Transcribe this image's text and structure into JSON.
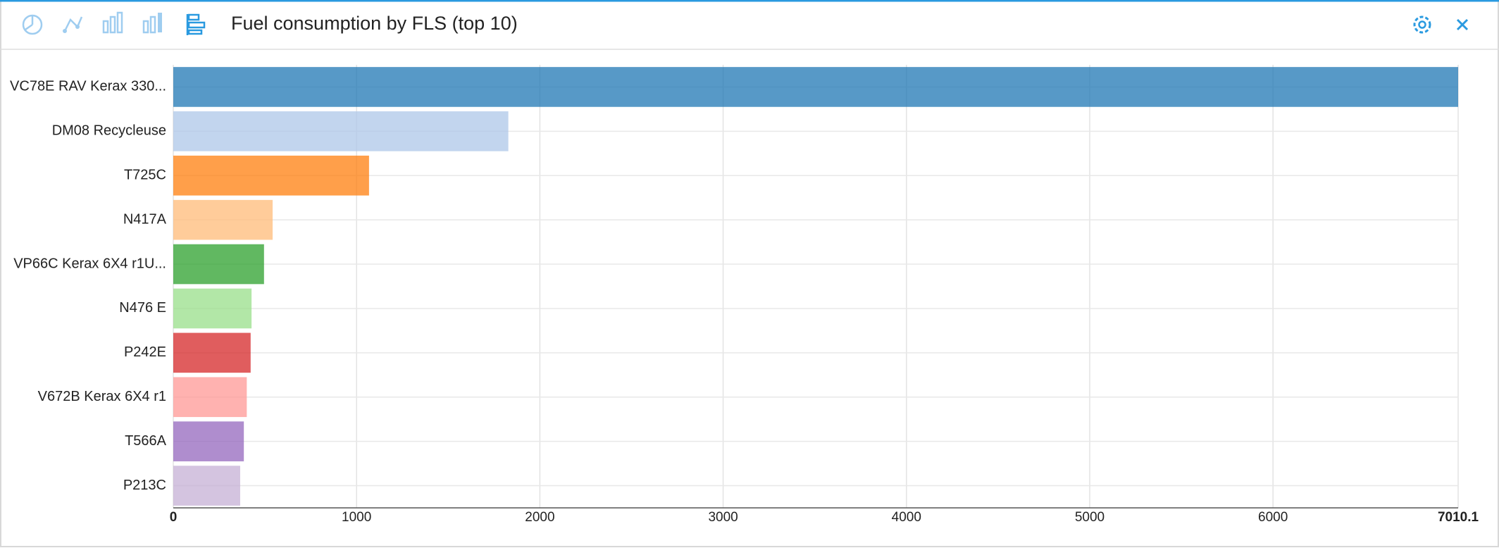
{
  "chart_data": {
    "type": "bar",
    "orientation": "horizontal",
    "title": "Fuel consumption by FLS (top 10)",
    "categories": [
      "VC78E RAV Kerax 330...",
      "DM08 Recycleuse",
      "T725C",
      "N417A",
      "VP66C Kerax 6X4 r1U...",
      "N476 E",
      "P242E",
      "V672B Kerax 6X4 r1",
      "T566A",
      "P213C"
    ],
    "values": [
      7010.1,
      1828,
      1068,
      542,
      495,
      427,
      422,
      401,
      385,
      365
    ],
    "colors": [
      "#1f77b4",
      "#aec7e8",
      "#ff7f0e",
      "#ffbb78",
      "#2ca02c",
      "#98df8a",
      "#d62728",
      "#ff9896",
      "#9467bd",
      "#c5b0d5"
    ],
    "xlim": [
      0,
      7010.1
    ],
    "xticks": [
      0,
      1000,
      2000,
      3000,
      4000,
      5000,
      6000,
      7010.1
    ],
    "grid": true
  }
}
